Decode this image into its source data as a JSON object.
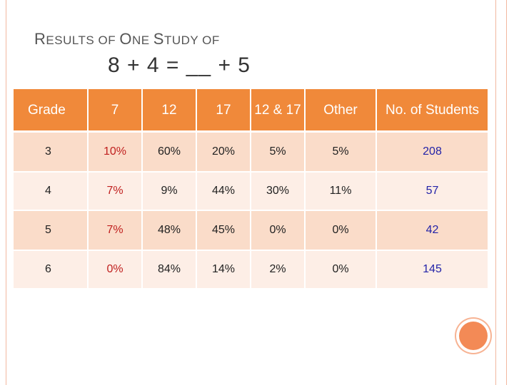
{
  "title": {
    "line1_parts": [
      "R",
      "ESULTS OF ",
      "O",
      "NE ",
      "S",
      "TUDY OF"
    ],
    "line2": "8 + 4 = __ + 5"
  },
  "table": {
    "headers": [
      "Grade",
      "7",
      "12",
      "17",
      "12 & 17",
      "Other",
      "No. of Students"
    ],
    "rows": [
      [
        "3",
        "10%",
        "60%",
        "20%",
        "5%",
        "5%",
        "208"
      ],
      [
        "4",
        "7%",
        "9%",
        "44%",
        "30%",
        "11%",
        "57"
      ],
      [
        "5",
        "7%",
        "48%",
        "45%",
        "0%",
        "0%",
        "42"
      ],
      [
        "6",
        "0%",
        "84%",
        "14%",
        "2%",
        "0%",
        "145"
      ]
    ]
  },
  "colors": {
    "header_bg": "#f0893a",
    "row_odd_bg": "#fadcc9",
    "row_even_bg": "#fdeee6",
    "highlight_red": "#c0201f",
    "highlight_blue": "#2323a8",
    "accent_circle": "#f38a56"
  }
}
